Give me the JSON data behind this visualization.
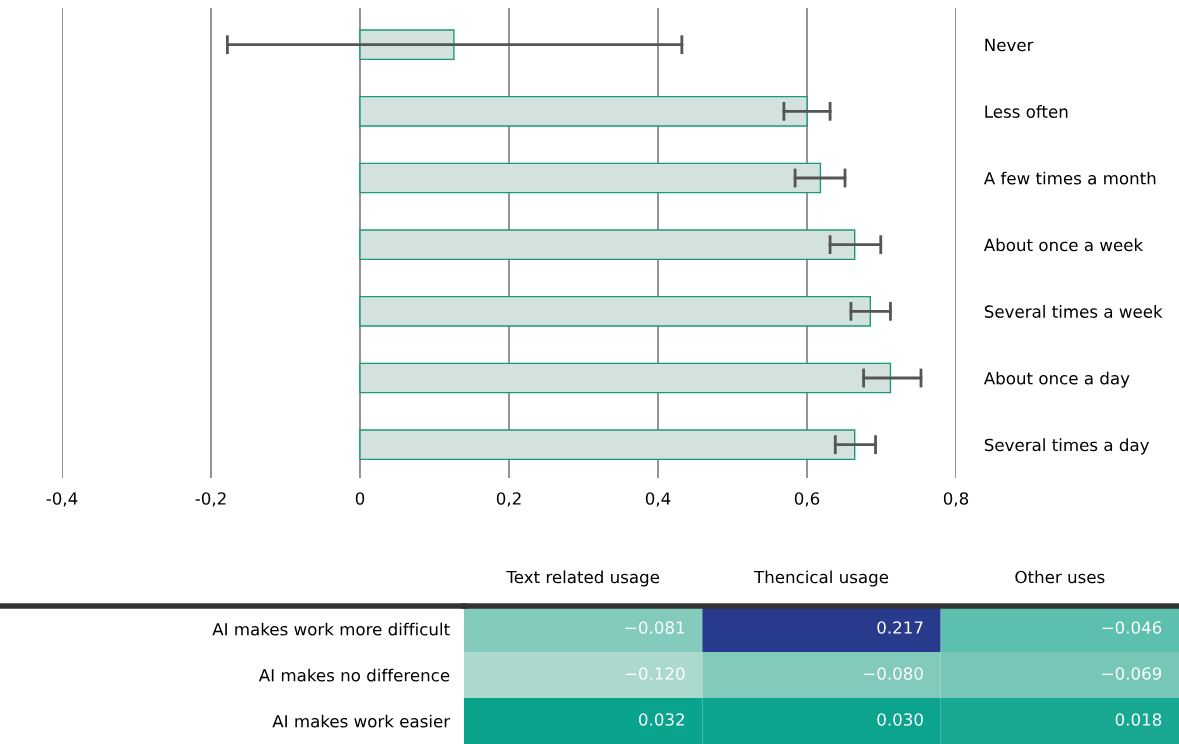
{
  "chart_data": [
    {
      "type": "bar",
      "orientation": "horizontal",
      "categories": [
        "Never",
        "Less often",
        "A few times a month",
        "About once a week",
        "Several times a week",
        "About once a day",
        "Several times a day"
      ],
      "values": [
        0.126,
        0.6,
        0.618,
        0.664,
        0.685,
        0.712,
        0.664
      ],
      "errors": [
        [
          -0.178,
          0.432
        ],
        [
          0.569,
          0.631
        ],
        [
          0.584,
          0.651
        ],
        [
          0.631,
          0.699
        ],
        [
          0.659,
          0.712
        ],
        [
          0.676,
          0.753
        ],
        [
          0.638,
          0.692
        ]
      ],
      "color": "#d4e2de",
      "xlim": [
        -0.4,
        0.8
      ],
      "xticks": [
        {
          "value": -0.4,
          "label": "-0,4"
        },
        {
          "value": -0.2,
          "label": "-0,2"
        },
        0,
        {
          "value": 0.2,
          "label": "0,2"
        },
        {
          "value": 0.4,
          "label": "0,4"
        },
        {
          "value": 0.6,
          "label": "0,6"
        },
        {
          "value": 0.8,
          "label": "0,8"
        }
      ],
      "grid": "x",
      "legend": false
    },
    {
      "type": "heatmap",
      "categories": [
        "Text related usage",
        "Thencical usage",
        "Other uses"
      ],
      "y_categories": [
        "AI makes work more difficult",
        "AI makes no difference",
        "AI makes work easier"
      ],
      "cells": [
        [
          -0.081,
          0.217,
          -0.046
        ],
        [
          -0.12,
          -0.08,
          -0.069
        ],
        [
          0.032,
          0.03,
          0.018
        ]
      ],
      "cell_labels": [
        [
          "−0.081",
          "0.217",
          "−0.046"
        ],
        [
          "−0.120",
          "−0.080",
          "−0.069"
        ],
        [
          "0.032",
          "0.030",
          "0.018"
        ]
      ]
    }
  ]
}
